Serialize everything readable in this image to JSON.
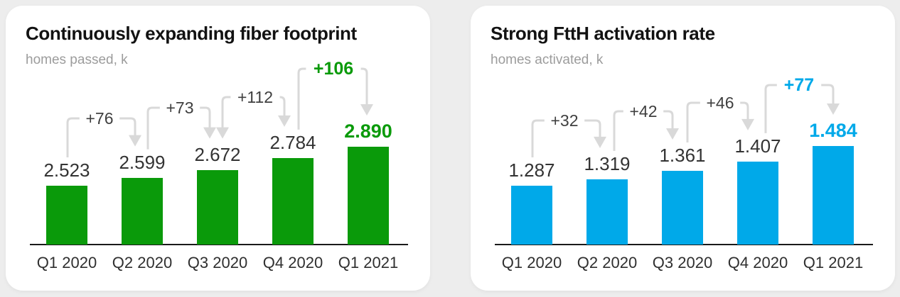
{
  "page": {
    "background_color": "#ededed",
    "card_color": "#ffffff"
  },
  "chart_data": [
    {
      "type": "bar",
      "title": "Continuously expanding fiber footprint",
      "subtitle": "homes passed, k",
      "categories": [
        "Q1 2020",
        "Q2 2020",
        "Q3 2020",
        "Q4 2020",
        "Q1 2021"
      ],
      "values": [
        2523,
        2599,
        2672,
        2784,
        2890
      ],
      "value_labels": [
        "2.523",
        "2.599",
        "2.672",
        "2.784",
        "2.890"
      ],
      "delta_values": [
        76,
        73,
        112,
        106
      ],
      "delta_labels": [
        "+76",
        "+73",
        "+112",
        "+106"
      ],
      "bar_color": "#0a9a0a",
      "highlight_color": "#0a9a0a",
      "delta_text_color": "#3f3f3f",
      "arrow_color": "#d9d9d9",
      "axis_color": "#1a1a1a",
      "ylabel": "homes passed, k",
      "xlabel": "",
      "baseline": "non-zero (bars truncated, growth emphasized)",
      "grid": "off",
      "legend": "none"
    },
    {
      "type": "bar",
      "title": "Strong FttH activation rate",
      "subtitle": "homes activated, k",
      "categories": [
        "Q1 2020",
        "Q2 2020",
        "Q3 2020",
        "Q4 2020",
        "Q1 2021"
      ],
      "values": [
        1287,
        1319,
        1361,
        1407,
        1484
      ],
      "value_labels": [
        "1.287",
        "1.319",
        "1.361",
        "1.407",
        "1.484"
      ],
      "delta_values": [
        32,
        42,
        46,
        77
      ],
      "delta_labels": [
        "+32",
        "+42",
        "+46",
        "+77"
      ],
      "bar_color": "#00a9e9",
      "highlight_color": "#00a9e9",
      "delta_text_color": "#3f3f3f",
      "arrow_color": "#d9d9d9",
      "axis_color": "#1a1a1a",
      "ylabel": "homes activated, k",
      "xlabel": "",
      "baseline": "non-zero (bars truncated, growth emphasized)",
      "grid": "off",
      "legend": "none"
    }
  ]
}
